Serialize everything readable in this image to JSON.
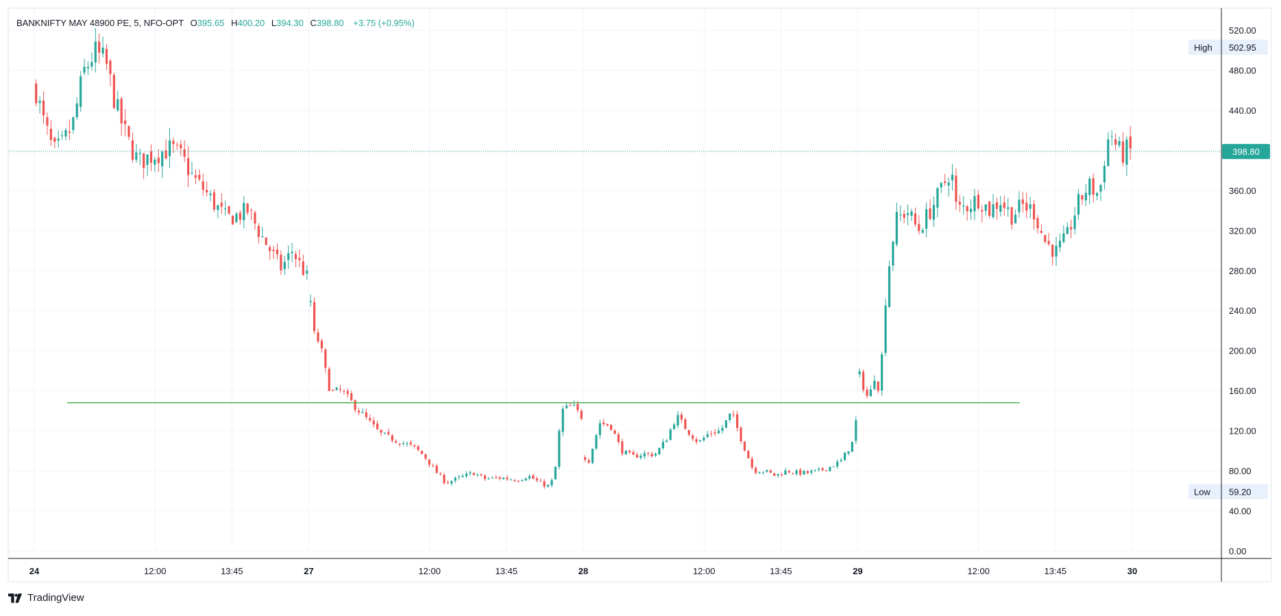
{
  "legend": {
    "symbol": "BANKNIFTY MAY 48900 PE, 5, NFO-OPT",
    "open_label": "O",
    "open": "395.65",
    "high_label": "H",
    "high": "400.20",
    "low_label": "L",
    "low": "394.30",
    "close_label": "C",
    "close": "398.80",
    "change": "+3.75 (+0.95%)"
  },
  "branding": {
    "name": "TradingView"
  },
  "colors": {
    "up": "#26a69a",
    "down": "#ef5350",
    "hline": "#4caf50"
  },
  "chart_data": {
    "type": "candlestick",
    "title": "BANKNIFTY MAY 48900 PE, 5, NFO-OPT",
    "ylim": [
      0,
      520
    ],
    "y_ticks": [
      "520.00",
      "480.00",
      "440.00",
      "400.00",
      "360.00",
      "320.00",
      "280.00",
      "240.00",
      "200.00",
      "160.00",
      "120.00",
      "80.00",
      "40.00",
      "0.00"
    ],
    "x_ticks": [
      {
        "label": "24",
        "bold": true,
        "pos": 0.0
      },
      {
        "label": "12:00",
        "bold": false,
        "pos": 0.44
      },
      {
        "label": "13:45",
        "bold": false,
        "pos": 0.72
      },
      {
        "label": "27",
        "bold": true,
        "pos": 1.0
      },
      {
        "label": "12:00",
        "bold": false,
        "pos": 1.44
      },
      {
        "label": "13:45",
        "bold": false,
        "pos": 1.72
      },
      {
        "label": "28",
        "bold": true,
        "pos": 2.0
      },
      {
        "label": "12:00",
        "bold": false,
        "pos": 2.44
      },
      {
        "label": "13:45",
        "bold": false,
        "pos": 2.72
      },
      {
        "label": "29",
        "bold": true,
        "pos": 3.0
      },
      {
        "label": "12:00",
        "bold": false,
        "pos": 3.44
      },
      {
        "label": "13:45",
        "bold": false,
        "pos": 3.72
      },
      {
        "label": "30",
        "bold": true,
        "pos": 4.0
      }
    ],
    "last_price": "398.80",
    "high_marker": {
      "label": "High",
      "value": "502.95"
    },
    "low_marker": {
      "label": "Low",
      "value": "59.20"
    },
    "horizontal_line": {
      "value": 148,
      "from": 0.12,
      "to": 3.59
    },
    "path_days": [
      {
        "day": "24",
        "points": [
          [
            0,
            468
          ],
          [
            0.03,
            432
          ],
          [
            0.07,
            398
          ],
          [
            0.1,
            405
          ],
          [
            0.14,
            425
          ],
          [
            0.18,
            478
          ],
          [
            0.22,
            498
          ],
          [
            0.26,
            488
          ],
          [
            0.3,
            442
          ],
          [
            0.34,
            410
          ],
          [
            0.38,
            388
          ],
          [
            0.42,
            394
          ],
          [
            0.46,
            398
          ],
          [
            0.5,
            402
          ],
          [
            0.54,
            392
          ],
          [
            0.58,
            372
          ],
          [
            0.62,
            360
          ],
          [
            0.66,
            345
          ],
          [
            0.7,
            332
          ],
          [
            0.74,
            335
          ],
          [
            0.78,
            340
          ],
          [
            0.82,
            318
          ],
          [
            0.86,
            300
          ],
          [
            0.9,
            282
          ],
          [
            0.94,
            300
          ],
          [
            0.97,
            285
          ],
          [
            1.0,
            270
          ]
        ]
      },
      {
        "day": "27",
        "points": [
          [
            1.0,
            266
          ],
          [
            1.02,
            215
          ],
          [
            1.04,
            208
          ],
          [
            1.06,
            180
          ],
          [
            1.08,
            158
          ],
          [
            1.12,
            160
          ],
          [
            1.16,
            147
          ],
          [
            1.2,
            135
          ],
          [
            1.26,
            117
          ],
          [
            1.32,
            110
          ],
          [
            1.38,
            104
          ],
          [
            1.42,
            95
          ],
          [
            1.46,
            80
          ],
          [
            1.5,
            68
          ],
          [
            1.56,
            74
          ],
          [
            1.6,
            78
          ],
          [
            1.64,
            72
          ],
          [
            1.7,
            73
          ],
          [
            1.76,
            71
          ],
          [
            1.8,
            75
          ],
          [
            1.84,
            68
          ],
          [
            1.88,
            64
          ],
          [
            1.9,
            85
          ],
          [
            1.92,
            140
          ],
          [
            1.96,
            145
          ],
          [
            2.0,
            132
          ]
        ]
      },
      {
        "day": "28",
        "points": [
          [
            2.0,
            95
          ],
          [
            2.02,
            90
          ],
          [
            2.06,
            128
          ],
          [
            2.1,
            125
          ],
          [
            2.14,
            100
          ],
          [
            2.18,
            94
          ],
          [
            2.22,
            97
          ],
          [
            2.26,
            96
          ],
          [
            2.3,
            110
          ],
          [
            2.34,
            135
          ],
          [
            2.38,
            120
          ],
          [
            2.42,
            108
          ],
          [
            2.46,
            118
          ],
          [
            2.5,
            120
          ],
          [
            2.54,
            138
          ],
          [
            2.58,
            108
          ],
          [
            2.62,
            80
          ],
          [
            2.66,
            80
          ],
          [
            2.7,
            75
          ],
          [
            2.74,
            80
          ],
          [
            2.78,
            78
          ],
          [
            2.82,
            78
          ],
          [
            2.86,
            80
          ],
          [
            2.9,
            84
          ],
          [
            2.94,
            90
          ],
          [
            2.98,
            108
          ],
          [
            3.0,
            140
          ]
        ]
      },
      {
        "day": "29",
        "points": [
          [
            3.0,
            180
          ],
          [
            3.02,
            165
          ],
          [
            3.04,
            150
          ],
          [
            3.06,
            175
          ],
          [
            3.08,
            160
          ],
          [
            3.1,
            248
          ],
          [
            3.12,
            300
          ],
          [
            3.14,
            330
          ],
          [
            3.18,
            340
          ],
          [
            3.22,
            320
          ],
          [
            3.26,
            338
          ],
          [
            3.3,
            358
          ],
          [
            3.34,
            382
          ],
          [
            3.36,
            340
          ],
          [
            3.4,
            345
          ],
          [
            3.44,
            352
          ],
          [
            3.48,
            340
          ],
          [
            3.52,
            350
          ],
          [
            3.56,
            335
          ],
          [
            3.6,
            345
          ],
          [
            3.64,
            340
          ],
          [
            3.68,
            310
          ],
          [
            3.72,
            298
          ],
          [
            3.76,
            312
          ],
          [
            3.8,
            345
          ],
          [
            3.84,
            365
          ],
          [
            3.88,
            355
          ],
          [
            3.9,
            395
          ],
          [
            3.92,
            420
          ],
          [
            3.94,
            405
          ],
          [
            3.96,
            395
          ],
          [
            3.98,
            400
          ],
          [
            4.0,
            398.8
          ]
        ]
      }
    ]
  }
}
